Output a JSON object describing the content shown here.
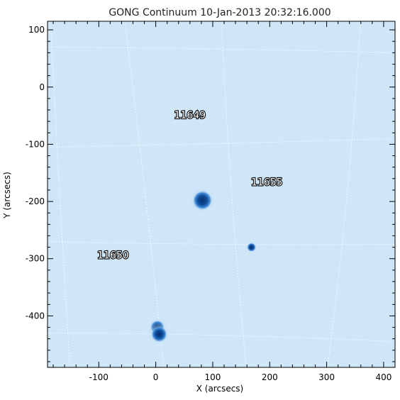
{
  "title": "GONG Continuum 10-Jan-2013 20:32:16.000",
  "xlabel": "X (arcsecs)",
  "ylabel": "Y (arcsecs)",
  "colors": {
    "background": "#cfe6f8",
    "spot_dark": "#0a3f85",
    "spot_mid": "#2d7ad0",
    "grid": "#ffffff",
    "frame": "#000000"
  },
  "axes": {
    "x_range": [
      -190,
      420
    ],
    "y_range": [
      -490,
      115
    ],
    "x_ticks": [
      {
        "value": -100,
        "label": "-100"
      },
      {
        "value": 0,
        "label": "0"
      },
      {
        "value": 100,
        "label": "100"
      },
      {
        "value": 200,
        "label": "200"
      },
      {
        "value": 300,
        "label": "300"
      },
      {
        "value": 400,
        "label": "400"
      }
    ],
    "y_ticks": [
      {
        "value": 100,
        "label": "100"
      },
      {
        "value": 0,
        "label": "0"
      },
      {
        "value": -100,
        "label": "-100"
      },
      {
        "value": -200,
        "label": "-200"
      },
      {
        "value": -300,
        "label": "-300"
      },
      {
        "value": -400,
        "label": "-400"
      }
    ]
  },
  "active_regions": [
    {
      "label": "11649",
      "x": 60,
      "y": -55
    },
    {
      "label": "11655",
      "x": 195,
      "y": -172
    },
    {
      "label": "11650",
      "x": -75,
      "y": -300
    }
  ],
  "sunspots": [
    {
      "name": "spot-center",
      "x": 82,
      "y": -198,
      "r": 11
    },
    {
      "name": "spot-small",
      "x": 168,
      "y": -280,
      "r": 5
    },
    {
      "name": "spot-bottom-a",
      "x": 3,
      "y": -420,
      "r": 8
    },
    {
      "name": "spot-bottom-b",
      "x": 6,
      "y": -432,
      "r": 9
    }
  ]
}
